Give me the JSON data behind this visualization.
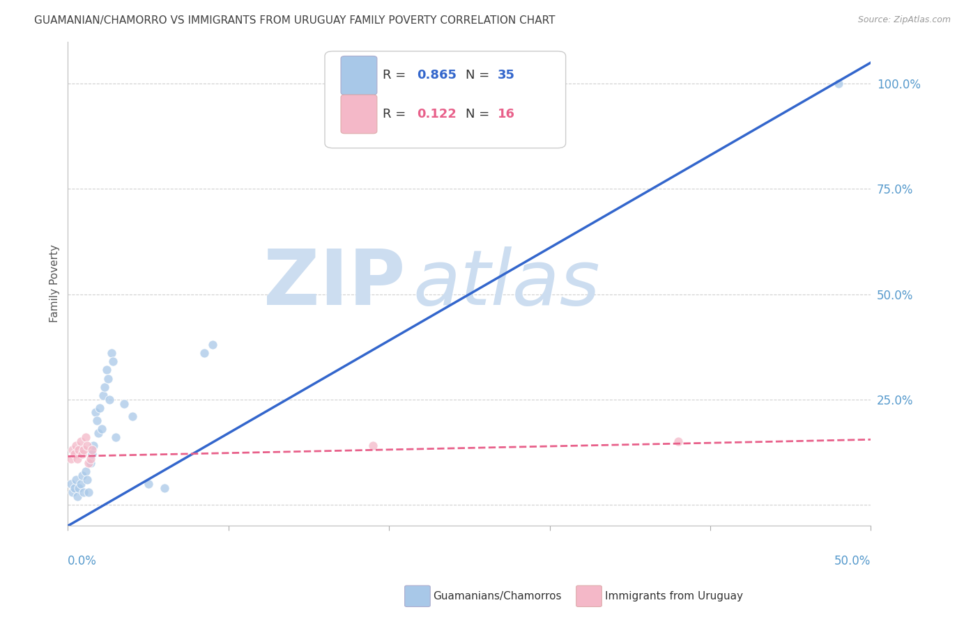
{
  "title": "GUAMANIAN/CHAMORRO VS IMMIGRANTS FROM URUGUAY FAMILY POVERTY CORRELATION CHART",
  "source": "Source: ZipAtlas.com",
  "ylabel": "Family Poverty",
  "xlim": [
    0.0,
    0.5
  ],
  "ylim": [
    -0.05,
    1.1
  ],
  "watermark_line1": "ZIP",
  "watermark_line2": "atlas",
  "blue_R": "0.865",
  "blue_N": "35",
  "pink_R": "0.122",
  "pink_N": "16",
  "blue_scatter_x": [
    0.002,
    0.003,
    0.004,
    0.005,
    0.006,
    0.007,
    0.008,
    0.009,
    0.01,
    0.011,
    0.012,
    0.013,
    0.014,
    0.015,
    0.016,
    0.017,
    0.018,
    0.019,
    0.02,
    0.021,
    0.022,
    0.023,
    0.024,
    0.025,
    0.026,
    0.027,
    0.028,
    0.03,
    0.035,
    0.04,
    0.05,
    0.06,
    0.085,
    0.09,
    0.48
  ],
  "blue_scatter_y": [
    0.05,
    0.03,
    0.04,
    0.06,
    0.02,
    0.04,
    0.05,
    0.07,
    0.03,
    0.08,
    0.06,
    0.03,
    0.1,
    0.12,
    0.14,
    0.22,
    0.2,
    0.17,
    0.23,
    0.18,
    0.26,
    0.28,
    0.32,
    0.3,
    0.25,
    0.36,
    0.34,
    0.16,
    0.24,
    0.21,
    0.05,
    0.04,
    0.36,
    0.38,
    1.0
  ],
  "pink_scatter_x": [
    0.002,
    0.003,
    0.004,
    0.005,
    0.006,
    0.007,
    0.008,
    0.009,
    0.01,
    0.011,
    0.012,
    0.013,
    0.014,
    0.015,
    0.19,
    0.38
  ],
  "pink_scatter_y": [
    0.11,
    0.13,
    0.12,
    0.14,
    0.11,
    0.13,
    0.15,
    0.12,
    0.13,
    0.16,
    0.14,
    0.1,
    0.11,
    0.13,
    0.14,
    0.15
  ],
  "blue_line_x0": 0.0,
  "blue_line_x1": 0.5,
  "blue_line_y0": -0.05,
  "blue_line_y1": 1.05,
  "pink_line_x0": 0.0,
  "pink_line_x1": 0.5,
  "pink_line_y0": 0.115,
  "pink_line_y1": 0.155,
  "blue_scatter_color": "#a8c8e8",
  "blue_line_color": "#3366cc",
  "pink_scatter_color": "#f4b8c8",
  "pink_line_color": "#e8608a",
  "legend_label_blue": "Guamanians/Chamorros",
  "legend_label_pink": "Immigrants from Uruguay",
  "ytick_vals": [
    0.0,
    0.25,
    0.5,
    0.75,
    1.0
  ],
  "ytick_labels": [
    "",
    "25.0%",
    "50.0%",
    "75.0%",
    "100.0%"
  ],
  "xtick_vals": [
    0.0,
    0.1,
    0.2,
    0.3,
    0.4,
    0.5
  ],
  "background_color": "#ffffff",
  "grid_color": "#d0d0d0",
  "title_color": "#404040",
  "right_axis_color": "#5599cc",
  "watermark_color": "#ccddf0"
}
